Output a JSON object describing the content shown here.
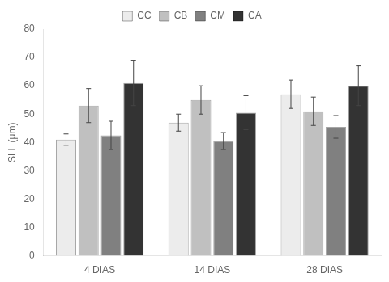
{
  "chart_data": {
    "type": "bar",
    "categories": [
      "4 DIAS",
      "14 DIAS",
      "28 DIAS"
    ],
    "series": [
      {
        "name": "CC",
        "color": "#ececec",
        "values": [
          41,
          47,
          57
        ],
        "errors": [
          2,
          3,
          5
        ]
      },
      {
        "name": "CB",
        "color": "#c0c0c0",
        "values": [
          53,
          55,
          51
        ],
        "errors": [
          6,
          5,
          5
        ]
      },
      {
        "name": "CM",
        "color": "#808080",
        "values": [
          42.5,
          40.5,
          45.5
        ],
        "errors": [
          5,
          3,
          4
        ]
      },
      {
        "name": "CA",
        "color": "#333333",
        "values": [
          61,
          50.5,
          60
        ],
        "errors": [
          8,
          6,
          7
        ]
      }
    ],
    "ylabel": "SLL (μm)",
    "ylim": [
      0,
      80
    ],
    "yticks": [
      0,
      10,
      20,
      30,
      40,
      50,
      60,
      70,
      80
    ],
    "grid": false,
    "legend": "top"
  }
}
